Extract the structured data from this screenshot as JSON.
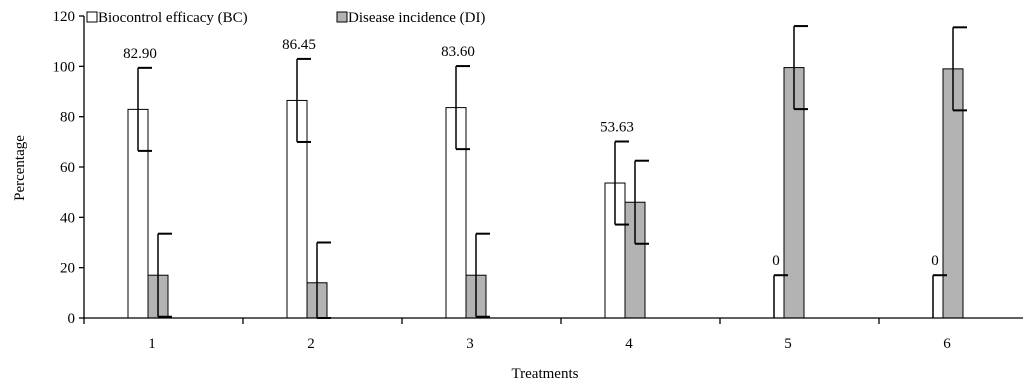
{
  "chart_data": {
    "type": "bar",
    "xlabel": "Treatments",
    "ylabel": "Percentage",
    "ylim": [
      0,
      120
    ],
    "yticks": [
      0,
      20,
      40,
      60,
      80,
      100,
      120
    ],
    "categories": [
      "1",
      "2",
      "3",
      "4",
      "5",
      "6"
    ],
    "legend_position": "top-left",
    "series": [
      {
        "name": "Biocontrol efficacy (BC)",
        "values": [
          82.9,
          86.45,
          83.6,
          53.63,
          0,
          0
        ],
        "errors": [
          16.5,
          16.5,
          16.5,
          16.5,
          17,
          17
        ],
        "data_labels": [
          "82.90",
          "86.45",
          "83.60",
          "53.63",
          "0",
          "0"
        ],
        "color": "#ffffff"
      },
      {
        "name": "Disease incidence (DI)",
        "values": [
          17,
          14,
          17,
          46,
          99.5,
          99
        ],
        "errors": [
          16.5,
          16,
          16.5,
          16.5,
          16.5,
          16.5
        ],
        "color": "#b3b3b3"
      }
    ]
  }
}
